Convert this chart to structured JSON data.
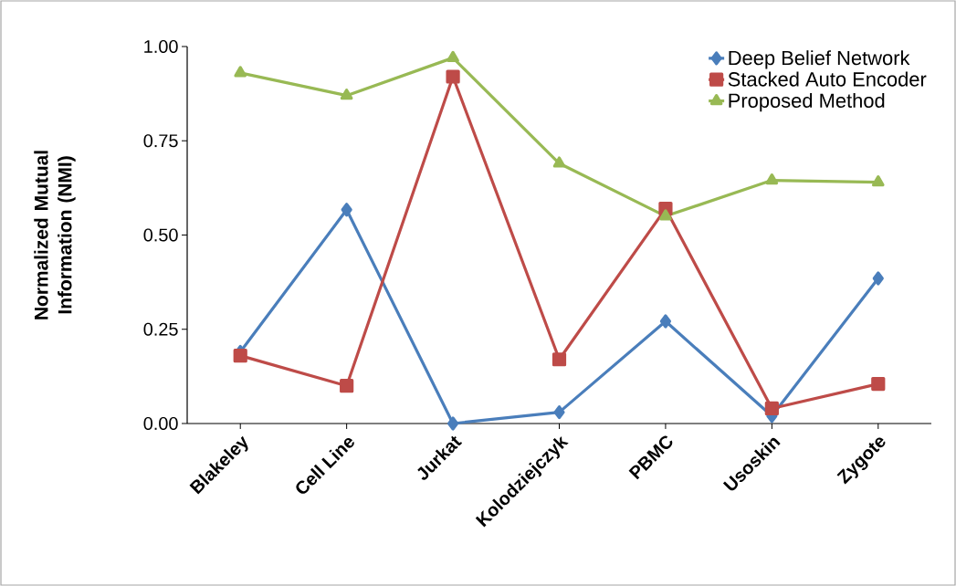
{
  "chart_data": {
    "type": "line",
    "ylabel": "Normalized Mutual Information (NMI)",
    "categories": [
      "Blakeley",
      "Cell Line",
      "Jurkat",
      "Kolodziejczyk",
      "PBMC",
      "Usoskin",
      "Zygote"
    ],
    "series": [
      {
        "name": "Deep Belief Network",
        "color": "#4a7ebb",
        "marker": "diamond",
        "values": [
          0.19,
          0.567,
          0.0,
          0.03,
          0.271,
          0.02,
          0.385
        ]
      },
      {
        "name": "Stacked Auto Encoder",
        "color": "#be4b48",
        "marker": "square",
        "values": [
          0.18,
          0.1,
          0.92,
          0.17,
          0.57,
          0.04,
          0.105
        ]
      },
      {
        "name": "Proposed Method",
        "color": "#98b954",
        "marker": "triangle",
        "values": [
          0.93,
          0.87,
          0.97,
          0.69,
          0.55,
          0.645,
          0.64
        ]
      }
    ],
    "ylim": [
      0,
      1
    ],
    "yticks": [
      {
        "value": 0,
        "label": "0.00"
      },
      {
        "value": 0.25,
        "label": "0.25"
      },
      {
        "value": 0.5,
        "label": "0.50"
      },
      {
        "value": 0.75,
        "label": "0.75"
      },
      {
        "value": 1,
        "label": "1.00"
      }
    ],
    "legend": "top right",
    "grid": false,
    "line_style": "solid"
  }
}
